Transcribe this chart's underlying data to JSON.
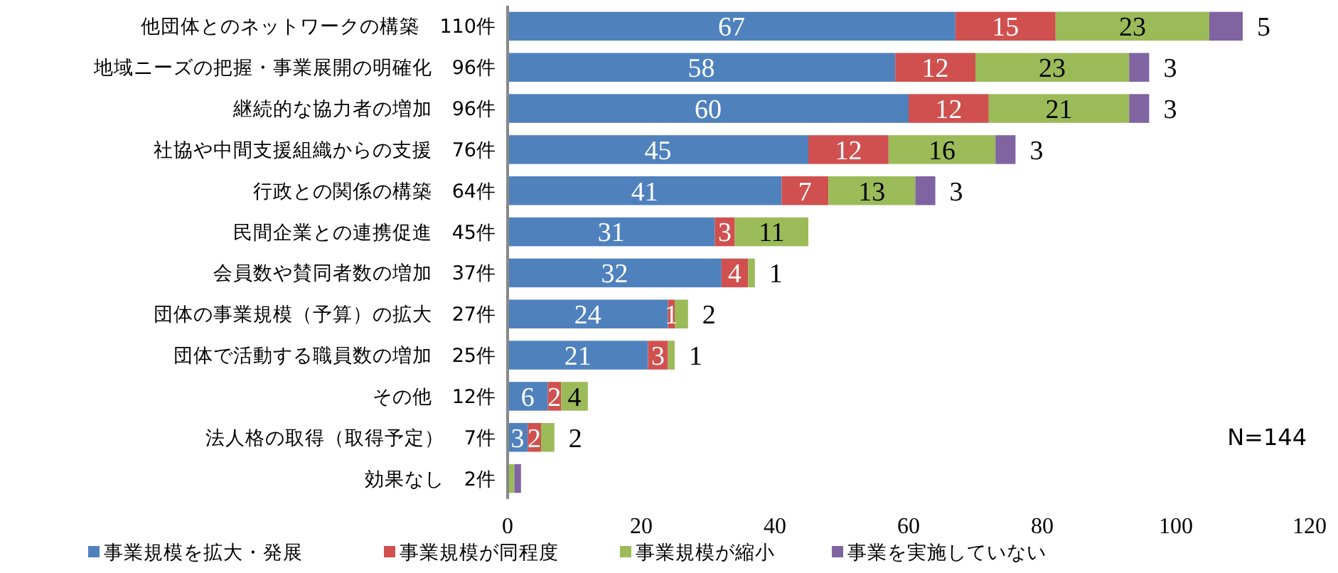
{
  "chart_data": {
    "type": "bar",
    "orientation": "horizontal",
    "stacked": true,
    "categories": [
      "他団体とのネットワークの構築　110件",
      "地域ニーズの把握・事業展開の明確化　96件",
      "継続的な協力者の増加　96件",
      "社協や中間支援組織からの支援　76件",
      "行政との関係の構築　64件",
      "民間企業との連携促進　45件",
      "会員数や賛同者数の増加　37件",
      "団体の事業規模（予算）の拡大　27件",
      "団体で活動する職員数の増加　25件",
      "その他　12件",
      "法人格の取得（取得予定）　7件",
      "効果なし　2件"
    ],
    "series": [
      {
        "name": "事業規模を拡大・発展",
        "color": "#4f81bd",
        "values": [
          67,
          58,
          60,
          45,
          41,
          31,
          32,
          24,
          21,
          6,
          3,
          0
        ],
        "value_labels": [
          "67",
          "58",
          "60",
          "45",
          "41",
          "31",
          "32",
          "24",
          "21",
          "6",
          "3",
          null
        ]
      },
      {
        "name": "事業規模が同程度",
        "color": "#d0504f",
        "values": [
          15,
          12,
          12,
          12,
          7,
          3,
          4,
          1,
          3,
          2,
          2,
          0
        ],
        "value_labels": [
          "15",
          "12",
          "12",
          "12",
          "7",
          "3",
          "4",
          "1",
          "3",
          "2",
          "2",
          null
        ]
      },
      {
        "name": "事業規模が縮小",
        "color": "#9bbb59",
        "values": [
          23,
          23,
          21,
          16,
          13,
          11,
          1,
          2,
          1,
          4,
          2,
          1
        ],
        "value_labels": [
          "23",
          "23",
          "21",
          "16",
          "13",
          "11",
          "1",
          "2",
          "1",
          "4",
          "2",
          null
        ]
      },
      {
        "name": "事業を実施していない",
        "color": "#8064a2",
        "values": [
          5,
          3,
          3,
          3,
          3,
          0,
          0,
          0,
          0,
          0,
          0,
          1
        ],
        "value_labels": [
          "5",
          "3",
          "3",
          "3",
          "3",
          null,
          null,
          null,
          null,
          null,
          null,
          null
        ]
      }
    ],
    "xlim": [
      0,
      120
    ],
    "xticks": [
      0,
      20,
      40,
      60,
      80,
      100,
      120
    ],
    "grid": false,
    "legend": "bottom",
    "annotations": [
      "N=144"
    ]
  }
}
